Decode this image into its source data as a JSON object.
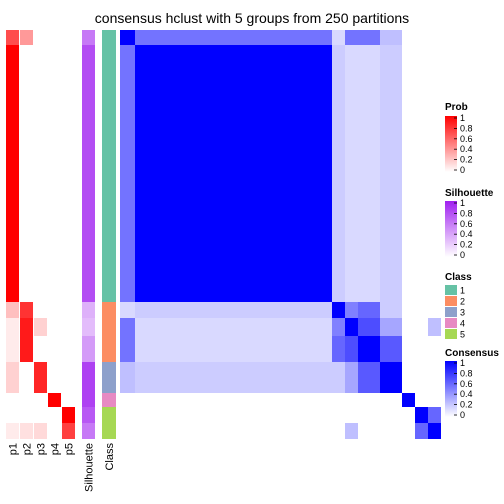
{
  "chart_data": {
    "type": "heatmap",
    "title": "consensus hclust with 5 groups from 250 partitions",
    "annotation_columns": [
      "p1",
      "p2",
      "p3",
      "p4",
      "p5",
      "Silhouette",
      "Class"
    ],
    "legends": [
      {
        "title": "Prob",
        "ticks": [
          "1",
          "0.8",
          "0.6",
          "0.4",
          "0.2",
          "0"
        ],
        "colors": [
          "#ff0000",
          "#ffffff"
        ]
      },
      {
        "title": "Silhouette",
        "ticks": [
          "1",
          "0.8",
          "0.6",
          "0.4",
          "0.2",
          "0"
        ],
        "colors": [
          "#a020f0",
          "#ffffff"
        ]
      },
      {
        "title": "Class",
        "ticks": [
          "1",
          "2",
          "3",
          "4",
          "5"
        ],
        "colors": [
          "#66c2a5",
          "#fc8d62",
          "#8da0cb",
          "#e78ac3",
          "#a6d854"
        ]
      },
      {
        "title": "Consensus",
        "ticks": [
          "1",
          "0.8",
          "0.6",
          "0.4",
          "0.2",
          "0"
        ],
        "colors": [
          "#0000ff",
          "#ffffff"
        ]
      }
    ],
    "samples": [
      {
        "p": [
          0.7,
          0.4,
          0,
          0,
          0
        ],
        "sil": 0.6,
        "cls": 1
      },
      {
        "p": [
          1,
          0,
          0,
          0,
          0
        ],
        "sil": 0.8,
        "cls": 1
      },
      {
        "p": [
          0.25,
          0.8,
          0,
          0,
          0
        ],
        "sil": 0.35,
        "cls": 2
      },
      {
        "p": [
          0.08,
          0.9,
          0.18,
          0,
          0
        ],
        "sil": 0.3,
        "cls": 2
      },
      {
        "p": [
          0.08,
          0.9,
          0,
          0,
          0
        ],
        "sil": 0.45,
        "cls": 2
      },
      {
        "p": [
          0.18,
          0,
          0.85,
          0,
          0
        ],
        "sil": 0.85,
        "cls": 3
      },
      {
        "p": [
          0,
          0,
          0,
          1,
          0
        ],
        "sil": 0.85,
        "cls": 4
      },
      {
        "p": [
          0,
          0,
          0,
          0,
          1
        ],
        "sil": 0.75,
        "cls": 5
      },
      {
        "p": [
          0.08,
          0.12,
          0.15,
          0,
          0.75
        ],
        "sil": 0.6,
        "cls": 5
      }
    ],
    "consensus_matrix": [
      [
        1,
        0.55,
        0.15,
        0.55,
        0.55,
        0.25,
        0,
        0,
        0
      ],
      [
        0.55,
        1,
        0.2,
        0.15,
        0.15,
        0.2,
        0,
        0,
        0
      ],
      [
        0.15,
        0.2,
        1,
        0.5,
        0.6,
        0.2,
        0,
        0,
        0
      ],
      [
        0.55,
        0.15,
        0.5,
        1,
        0.7,
        0.35,
        0,
        0,
        0.25
      ],
      [
        0.55,
        0.15,
        0.6,
        0.7,
        1,
        0.65,
        0,
        0,
        0
      ],
      [
        0.25,
        0.2,
        0.2,
        0.35,
        0.65,
        1,
        0,
        0,
        0
      ],
      [
        0,
        0,
        0,
        0,
        0,
        0,
        1,
        0,
        0
      ],
      [
        0,
        0,
        0,
        0,
        0,
        0,
        0,
        1,
        0.6
      ],
      [
        0,
        0,
        0,
        0.25,
        0,
        0,
        0,
        0.6,
        1
      ]
    ]
  }
}
